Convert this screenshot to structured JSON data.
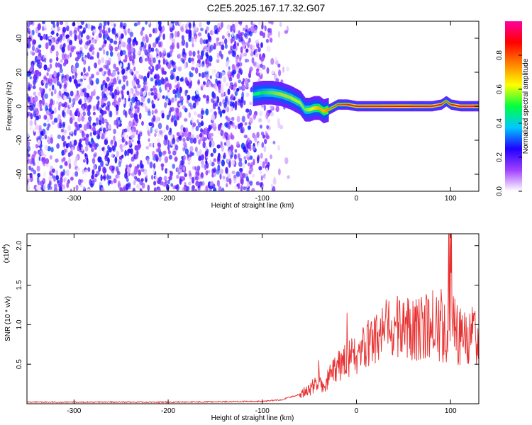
{
  "title": "C2E5.2025.167.17.32.G07",
  "chart_data": [
    {
      "type": "heatmap",
      "xlabel": "Height of straight line (km)",
      "ylabel": "Frequency (Hz)",
      "xlim": [
        -350,
        130
      ],
      "ylim": [
        -50,
        50
      ],
      "x_ticks": [
        -300,
        -200,
        -100,
        0,
        100
      ],
      "x_tick_labels": [
        "-300",
        "-200",
        "-100",
        "0",
        "100"
      ],
      "y_ticks": [
        -40,
        -20,
        0,
        20,
        40
      ],
      "y_tick_labels": [
        "-40",
        "-20",
        "0",
        "20",
        "40"
      ],
      "colorbar": {
        "label": "Normalized spectral amplitude",
        "range": [
          0,
          1
        ],
        "ticks": [
          0.0,
          0.2,
          0.4,
          0.6,
          0.8
        ],
        "tick_labels": [
          "0.0",
          "0.2",
          "0.4",
          "0.6",
          "0.8"
        ],
        "stops": [
          "#ffffff",
          "#a040ff",
          "#2000ff",
          "#00c8ff",
          "#00ff40",
          "#ffff00",
          "#ff8000",
          "#ff0000",
          "#ff00a0"
        ]
      },
      "noise_region": {
        "x_range": [
          -350,
          -80
        ],
        "amplitude": 0.15
      },
      "signal_track": {
        "x": [
          -110,
          -100,
          -90,
          -80,
          -70,
          -60,
          -55,
          -50,
          -45,
          -40,
          -35,
          -30,
          -20,
          -10,
          0,
          20,
          40,
          60,
          80,
          90,
          95,
          100,
          110,
          130
        ],
        "freq": [
          7,
          8,
          8,
          7,
          5,
          2,
          -2,
          -2,
          -1,
          -1,
          -3,
          -2,
          1,
          1,
          0,
          0,
          0,
          0,
          0,
          1,
          3,
          1,
          0,
          0
        ],
        "amplitude": [
          0.45,
          0.5,
          0.55,
          0.6,
          0.6,
          0.6,
          0.55,
          0.6,
          0.65,
          0.7,
          0.7,
          0.75,
          0.8,
          0.85,
          0.9,
          0.9,
          0.9,
          0.9,
          0.9,
          0.9,
          0.75,
          0.85,
          0.95,
          0.95
        ]
      }
    },
    {
      "type": "line",
      "xlabel": "Height of straight line (km)",
      "ylabel": "SNR (10 * v/v)",
      "scale_label": "(x10",
      "scale_exponent": "4",
      "xlim": [
        -350,
        130
      ],
      "ylim": [
        0,
        2.15
      ],
      "x_ticks": [
        -300,
        -200,
        -100,
        0,
        100
      ],
      "x_tick_labels": [
        "-300",
        "-200",
        "-100",
        "0",
        "100"
      ],
      "y_ticks": [
        0.5,
        1.0,
        1.5,
        2.0
      ],
      "y_tick_labels": [
        "0.5",
        "1.0",
        "1.5",
        "2.0"
      ],
      "series": [
        {
          "color": "#e83030",
          "envelope_x": [
            -350,
            -200,
            -100,
            -80,
            -60,
            -50,
            -40,
            -35,
            -30,
            -20,
            -10,
            0,
            10,
            20,
            30,
            40,
            50,
            60,
            70,
            80,
            90,
            95,
            100,
            102,
            105,
            110,
            120,
            130
          ],
          "envelope_y": [
            0.02,
            0.02,
            0.03,
            0.05,
            0.12,
            0.18,
            0.28,
            0.18,
            0.32,
            0.45,
            0.58,
            0.6,
            0.72,
            0.82,
            0.92,
            0.95,
            0.97,
            0.98,
            0.95,
            1.0,
            0.95,
            0.9,
            1.4,
            1.3,
            0.9,
            0.86,
            0.85,
            0.85
          ],
          "spikes": [
            {
              "x": -40,
              "y": 0.55
            },
            {
              "x": -10,
              "y": 1.15
            },
            {
              "x": 60,
              "y": 1.3
            },
            {
              "x": 75,
              "y": 1.3
            },
            {
              "x": 85,
              "y": 1.35
            },
            {
              "x": 90,
              "y": 1.45
            },
            {
              "x": 98,
              "y": 2.15
            },
            {
              "x": 99,
              "y": 2.15
            },
            {
              "x": 100,
              "y": 2.15
            },
            {
              "x": 101,
              "y": 2.15
            }
          ]
        }
      ]
    }
  ]
}
